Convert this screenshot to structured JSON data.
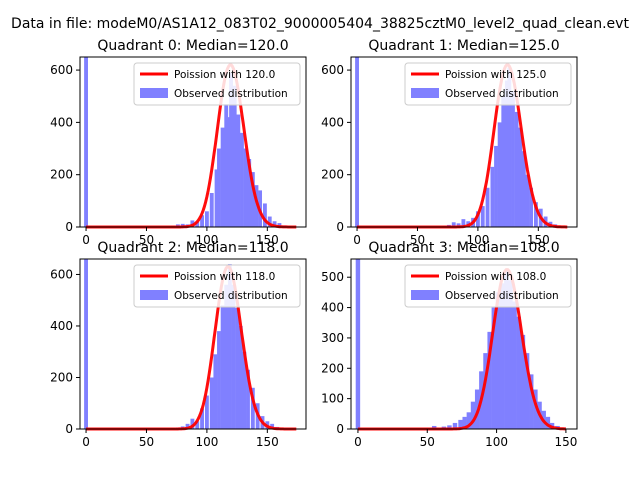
{
  "figure": {
    "suptitle": "Data in file: modeM0/AS1A12_083T02_9000005404_38825cztM0_level2_quad_clean.evt"
  },
  "chart_data": [
    {
      "type": "bar",
      "title": "Quadrant 0: Median=120.0",
      "xlim": [
        -5,
        182
      ],
      "ylim": [
        0,
        650
      ],
      "xticks": [
        0,
        50,
        100,
        150
      ],
      "yticks": [
        0,
        200,
        400,
        600
      ],
      "grid": false,
      "legend_position": "top-right",
      "legend": [
        "Poission with 120.0",
        "Observed distribution"
      ],
      "poisson_mean": 120,
      "poisson_scale": 620,
      "line_color": "#ff0000",
      "bar_color": "#8080ff",
      "bins": [
        {
          "x": 0,
          "value": 650
        },
        {
          "x": 68,
          "value": 2
        },
        {
          "x": 72,
          "value": 5
        },
        {
          "x": 76,
          "value": 10
        },
        {
          "x": 80,
          "value": 12
        },
        {
          "x": 84,
          "value": 10
        },
        {
          "x": 88,
          "value": 25
        },
        {
          "x": 92,
          "value": 20
        },
        {
          "x": 96,
          "value": 45
        },
        {
          "x": 100,
          "value": 60
        },
        {
          "x": 104,
          "value": 130
        },
        {
          "x": 108,
          "value": 220
        },
        {
          "x": 110,
          "value": 300
        },
        {
          "x": 113,
          "value": 380
        },
        {
          "x": 116,
          "value": 470
        },
        {
          "x": 118,
          "value": 420
        },
        {
          "x": 120,
          "value": 590
        },
        {
          "x": 123,
          "value": 540
        },
        {
          "x": 126,
          "value": 430
        },
        {
          "x": 129,
          "value": 360
        },
        {
          "x": 132,
          "value": 300
        },
        {
          "x": 135,
          "value": 260
        },
        {
          "x": 138,
          "value": 210
        },
        {
          "x": 141,
          "value": 160
        },
        {
          "x": 144,
          "value": 140
        },
        {
          "x": 148,
          "value": 90
        },
        {
          "x": 152,
          "value": 40
        },
        {
          "x": 156,
          "value": 22
        },
        {
          "x": 160,
          "value": 15
        },
        {
          "x": 164,
          "value": 6
        },
        {
          "x": 168,
          "value": 4
        }
      ]
    },
    {
      "type": "bar",
      "title": "Quadrant 1: Median=125.0",
      "xlim": [
        -5,
        182
      ],
      "ylim": [
        0,
        650
      ],
      "xticks": [
        0,
        50,
        100,
        150
      ],
      "yticks": [
        0,
        200,
        400,
        600
      ],
      "grid": false,
      "legend_position": "top-right",
      "legend": [
        "Poission with 125.0",
        "Observed distribution"
      ],
      "poisson_mean": 125,
      "poisson_scale": 620,
      "line_color": "#ff0000",
      "bar_color": "#8080ff",
      "bins": [
        {
          "x": 0,
          "value": 650
        },
        {
          "x": 72,
          "value": 4
        },
        {
          "x": 76,
          "value": 8
        },
        {
          "x": 80,
          "value": 18
        },
        {
          "x": 84,
          "value": 14
        },
        {
          "x": 88,
          "value": 30
        },
        {
          "x": 92,
          "value": 22
        },
        {
          "x": 96,
          "value": 35
        },
        {
          "x": 100,
          "value": 60
        },
        {
          "x": 104,
          "value": 80
        },
        {
          "x": 108,
          "value": 150
        },
        {
          "x": 112,
          "value": 230
        },
        {
          "x": 115,
          "value": 310
        },
        {
          "x": 118,
          "value": 400
        },
        {
          "x": 121,
          "value": 500
        },
        {
          "x": 124,
          "value": 560
        },
        {
          "x": 126,
          "value": 610
        },
        {
          "x": 129,
          "value": 520
        },
        {
          "x": 132,
          "value": 440
        },
        {
          "x": 135,
          "value": 380
        },
        {
          "x": 138,
          "value": 290
        },
        {
          "x": 141,
          "value": 200
        },
        {
          "x": 144,
          "value": 150
        },
        {
          "x": 148,
          "value": 95
        },
        {
          "x": 152,
          "value": 70
        },
        {
          "x": 156,
          "value": 40
        },
        {
          "x": 160,
          "value": 20
        },
        {
          "x": 164,
          "value": 10
        },
        {
          "x": 168,
          "value": 4
        }
      ]
    },
    {
      "type": "bar",
      "title": "Quadrant 2: Median=118.0",
      "xlim": [
        -5,
        182
      ],
      "ylim": [
        0,
        660
      ],
      "xticks": [
        0,
        50,
        100,
        150
      ],
      "yticks": [
        0,
        200,
        400,
        600
      ],
      "grid": false,
      "legend_position": "top-right",
      "legend": [
        "Poission with 118.0",
        "Observed distribution"
      ],
      "poisson_mean": 118,
      "poisson_scale": 630,
      "line_color": "#ff0000",
      "bar_color": "#8080ff",
      "bins": [
        {
          "x": 0,
          "value": 660
        },
        {
          "x": 72,
          "value": 4
        },
        {
          "x": 76,
          "value": 6
        },
        {
          "x": 80,
          "value": 10
        },
        {
          "x": 84,
          "value": 20
        },
        {
          "x": 88,
          "value": 40
        },
        {
          "x": 92,
          "value": 30
        },
        {
          "x": 96,
          "value": 80
        },
        {
          "x": 100,
          "value": 130
        },
        {
          "x": 104,
          "value": 200
        },
        {
          "x": 107,
          "value": 290
        },
        {
          "x": 110,
          "value": 380
        },
        {
          "x": 113,
          "value": 480
        },
        {
          "x": 116,
          "value": 560
        },
        {
          "x": 119,
          "value": 640
        },
        {
          "x": 122,
          "value": 560
        },
        {
          "x": 125,
          "value": 470
        },
        {
          "x": 128,
          "value": 400
        },
        {
          "x": 131,
          "value": 300
        },
        {
          "x": 134,
          "value": 230
        },
        {
          "x": 138,
          "value": 160
        },
        {
          "x": 142,
          "value": 100
        },
        {
          "x": 146,
          "value": 50
        },
        {
          "x": 150,
          "value": 30
        },
        {
          "x": 154,
          "value": 20
        },
        {
          "x": 158,
          "value": 8
        },
        {
          "x": 162,
          "value": 4
        }
      ]
    },
    {
      "type": "bar",
      "title": "Quadrant 3: Median=108.0",
      "xlim": [
        -5,
        158
      ],
      "ylim": [
        0,
        560
      ],
      "xticks": [
        0,
        50,
        100,
        150
      ],
      "yticks": [
        0,
        100,
        200,
        300,
        400,
        500
      ],
      "grid": false,
      "legend_position": "top-right",
      "legend": [
        "Poission with 108.0",
        "Observed distribution"
      ],
      "poisson_mean": 108,
      "poisson_scale": 525,
      "line_color": "#ff0000",
      "bar_color": "#8080ff",
      "bins": [
        {
          "x": 0,
          "value": 560
        },
        {
          "x": 55,
          "value": 10
        },
        {
          "x": 62,
          "value": 8
        },
        {
          "x": 66,
          "value": 12
        },
        {
          "x": 70,
          "value": 20
        },
        {
          "x": 74,
          "value": 30
        },
        {
          "x": 77,
          "value": 40
        },
        {
          "x": 80,
          "value": 55
        },
        {
          "x": 83,
          "value": 90
        },
        {
          "x": 86,
          "value": 130
        },
        {
          "x": 89,
          "value": 190
        },
        {
          "x": 92,
          "value": 250
        },
        {
          "x": 95,
          "value": 320
        },
        {
          "x": 98,
          "value": 400
        },
        {
          "x": 101,
          "value": 450
        },
        {
          "x": 104,
          "value": 480
        },
        {
          "x": 107,
          "value": 520
        },
        {
          "x": 110,
          "value": 490
        },
        {
          "x": 113,
          "value": 420
        },
        {
          "x": 116,
          "value": 370
        },
        {
          "x": 119,
          "value": 310
        },
        {
          "x": 122,
          "value": 250
        },
        {
          "x": 125,
          "value": 180
        },
        {
          "x": 128,
          "value": 130
        },
        {
          "x": 131,
          "value": 90
        },
        {
          "x": 134,
          "value": 60
        },
        {
          "x": 137,
          "value": 40
        },
        {
          "x": 140,
          "value": 20
        },
        {
          "x": 144,
          "value": 10
        },
        {
          "x": 148,
          "value": 4
        }
      ]
    }
  ]
}
